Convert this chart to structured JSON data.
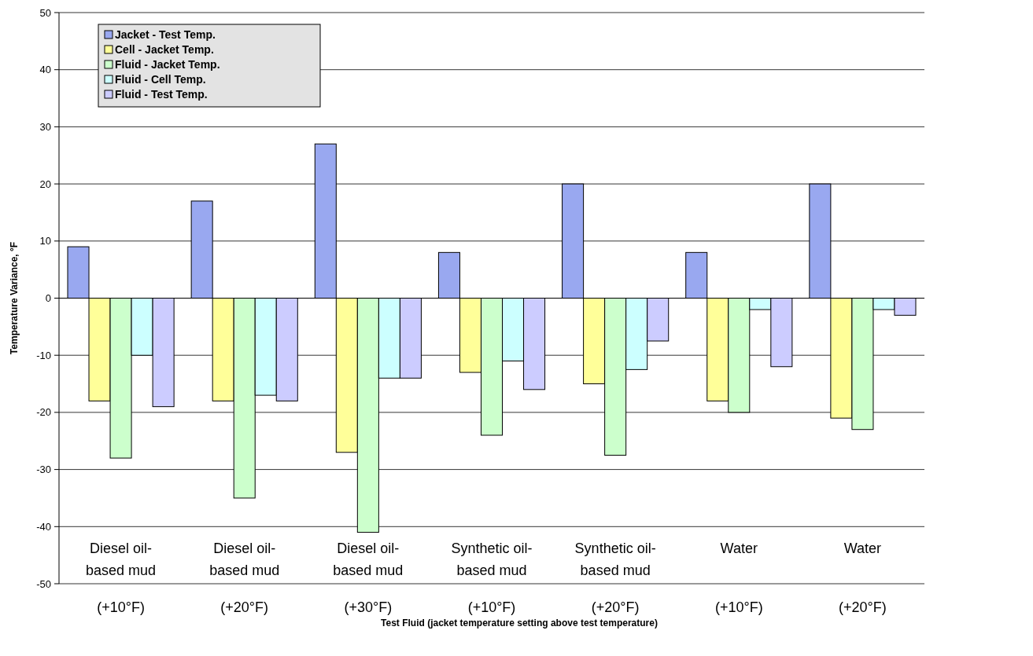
{
  "chart_data": {
    "type": "bar",
    "xlabel": "Test Fluid (jacket temperature setting above test temperature)",
    "ylabel": "Temperature Variance, °F",
    "categories": [
      "Diesel oil-based mud (+10°F)",
      "Diesel oil-based mud (+20°F)",
      "Diesel oil-based mud (+30°F)",
      "Synthetic oil-based mud (+10°F)",
      "Synthetic oil-based mud (+20°F)",
      "Water (+10°F)",
      "Water (+20°F)"
    ],
    "series": [
      {
        "name": "Jacket - Test Temp.",
        "color": "#99a8f0",
        "values": [
          9,
          17,
          27,
          8,
          20,
          8,
          20
        ]
      },
      {
        "name": "Cell - Jacket Temp.",
        "color": "#ffff99",
        "values": [
          -18,
          -18,
          -27,
          -13,
          -15,
          -18,
          -21
        ]
      },
      {
        "name": "Fluid - Jacket Temp.",
        "color": "#ccffcc",
        "values": [
          -28,
          -35,
          -41,
          -24,
          -27.5,
          -20,
          -23
        ]
      },
      {
        "name": "Fluid - Cell Temp.",
        "color": "#ccffff",
        "values": [
          -10,
          -17,
          -14,
          -11,
          -12.5,
          -2,
          -2
        ]
      },
      {
        "name": "Fluid - Test Temp.",
        "color": "#ccccff",
        "values": [
          -19,
          -18,
          -14,
          -16,
          -7.5,
          -12,
          -3
        ]
      }
    ],
    "ylim": [
      -50,
      50
    ],
    "yticks": [
      -50,
      -40,
      -30,
      -20,
      -10,
      0,
      10,
      20,
      30,
      40,
      50
    ],
    "grid": "y",
    "legend": "top left"
  }
}
